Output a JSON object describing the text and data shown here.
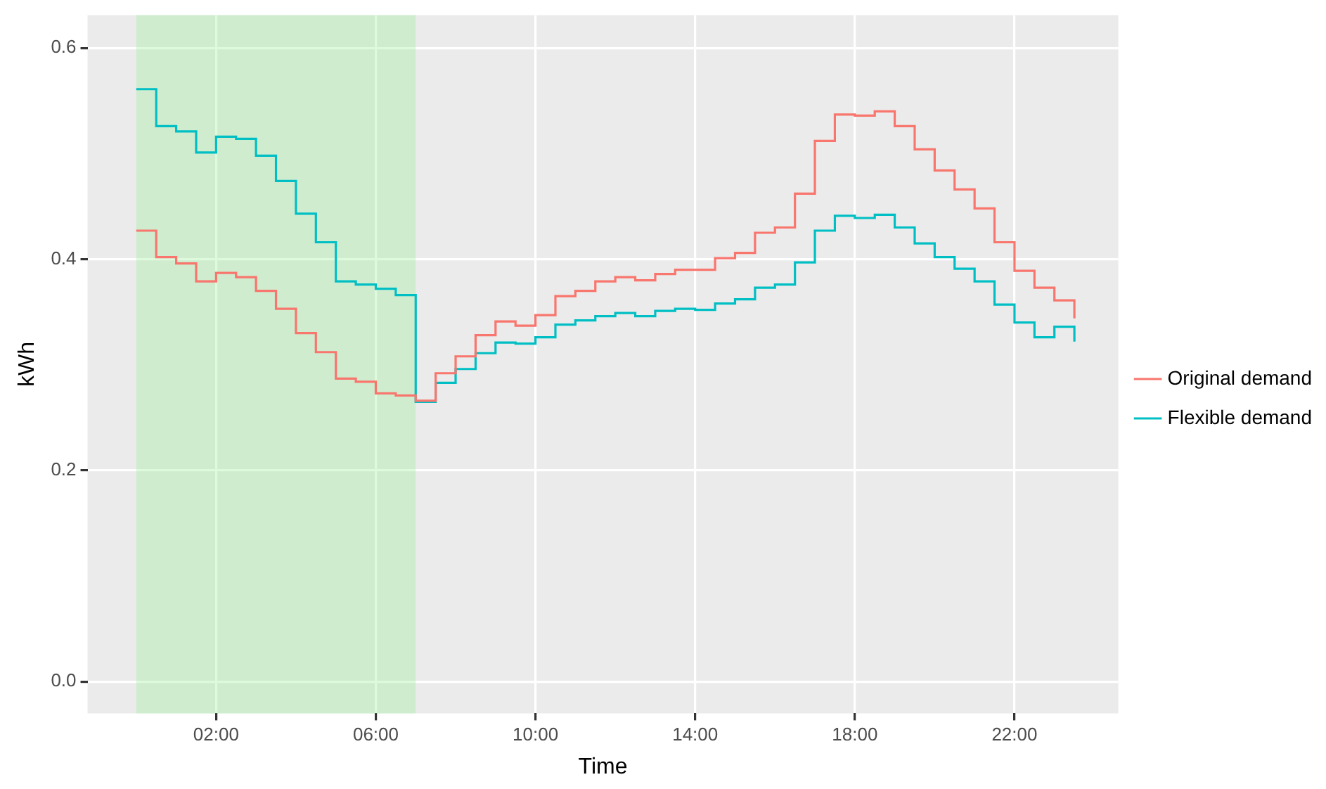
{
  "chart_data": {
    "type": "step",
    "xlabel": "Time",
    "ylabel": "kWh",
    "x": [
      0,
      0.5,
      1,
      1.5,
      2,
      2.5,
      3,
      3.5,
      4,
      4.5,
      5,
      5.5,
      6,
      6.5,
      7,
      7.5,
      8,
      8.5,
      9,
      9.5,
      10,
      10.5,
      11,
      11.5,
      12,
      12.5,
      13,
      13.5,
      14,
      14.5,
      15,
      15.5,
      16,
      16.5,
      17,
      17.5,
      18,
      18.5,
      19,
      19.5,
      20,
      20.5,
      21,
      21.5,
      22,
      22.5,
      23,
      23.5
    ],
    "series": [
      {
        "name": "Original demand",
        "color": "#f8766d",
        "values": [
          0.427,
          0.402,
          0.396,
          0.379,
          0.387,
          0.383,
          0.37,
          0.353,
          0.33,
          0.312,
          0.287,
          0.284,
          0.273,
          0.271,
          0.266,
          0.292,
          0.308,
          0.328,
          0.341,
          0.337,
          0.347,
          0.365,
          0.37,
          0.379,
          0.383,
          0.38,
          0.386,
          0.39,
          0.39,
          0.401,
          0.406,
          0.425,
          0.43,
          0.462,
          0.512,
          0.537,
          0.536,
          0.54,
          0.526,
          0.504,
          0.484,
          0.466,
          0.448,
          0.416,
          0.389,
          0.373,
          0.361,
          0.344
        ]
      },
      {
        "name": "Flexible demand",
        "color": "#00bfc4",
        "values": [
          0.561,
          0.526,
          0.521,
          0.501,
          0.516,
          0.514,
          0.498,
          0.474,
          0.443,
          0.416,
          0.379,
          0.376,
          0.372,
          0.366,
          0.265,
          0.283,
          0.296,
          0.311,
          0.321,
          0.32,
          0.326,
          0.338,
          0.342,
          0.346,
          0.349,
          0.346,
          0.351,
          0.353,
          0.352,
          0.358,
          0.362,
          0.373,
          0.376,
          0.397,
          0.427,
          0.441,
          0.439,
          0.442,
          0.43,
          0.415,
          0.402,
          0.391,
          0.379,
          0.357,
          0.34,
          0.326,
          0.336,
          0.322
        ]
      }
    ],
    "xlim": [
      -1.22,
      24.6
    ],
    "xticks": [
      {
        "value": 2,
        "label": "02:00"
      },
      {
        "value": 6,
        "label": "06:00"
      },
      {
        "value": 10,
        "label": "10:00"
      },
      {
        "value": 14,
        "label": "14:00"
      },
      {
        "value": 18,
        "label": "18:00"
      },
      {
        "value": 22,
        "label": "22:00"
      }
    ],
    "ylim": [
      -0.03,
      0.631
    ],
    "yticks": [
      {
        "value": 0,
        "label": "0.0"
      },
      {
        "value": 0.2,
        "label": "0.2"
      },
      {
        "value": 0.4,
        "label": "0.4"
      },
      {
        "value": 0.6,
        "label": "0.6"
      }
    ],
    "bands": [
      {
        "axis": "x",
        "from": 0,
        "to": 7,
        "color": "#90ee90"
      }
    ],
    "grid": true,
    "legend": "right",
    "marker": "none",
    "line_style": "solid"
  }
}
